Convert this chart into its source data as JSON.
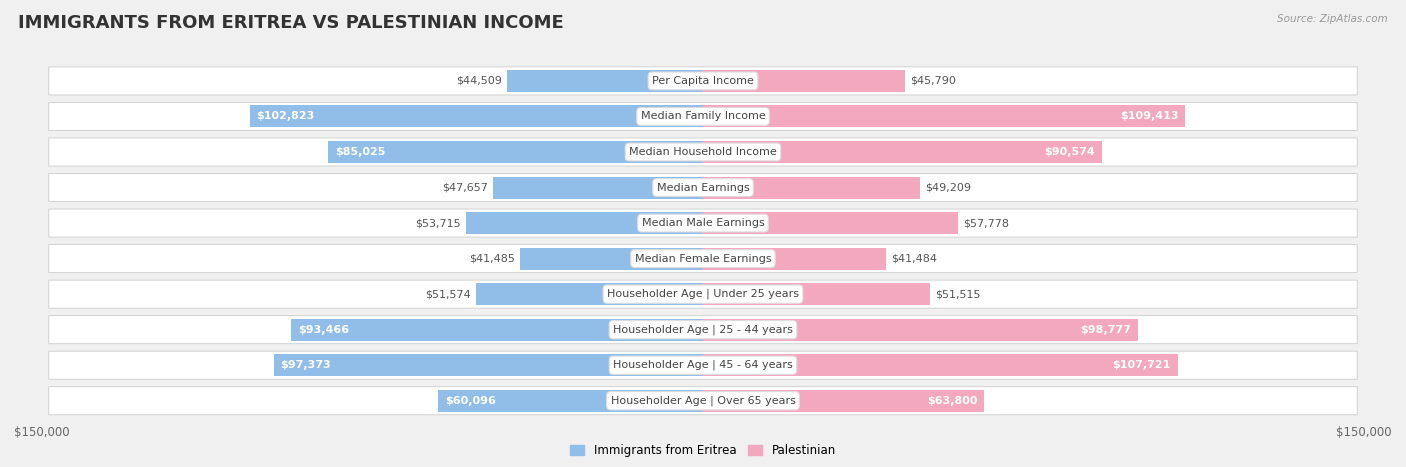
{
  "title": "IMMIGRANTS FROM ERITREA VS PALESTINIAN INCOME",
  "source": "Source: ZipAtlas.com",
  "categories": [
    "Per Capita Income",
    "Median Family Income",
    "Median Household Income",
    "Median Earnings",
    "Median Male Earnings",
    "Median Female Earnings",
    "Householder Age | Under 25 years",
    "Householder Age | 25 - 44 years",
    "Householder Age | 45 - 64 years",
    "Householder Age | Over 65 years"
  ],
  "eritrea_values": [
    44509,
    102823,
    85025,
    47657,
    53715,
    41485,
    51574,
    93466,
    97373,
    60096
  ],
  "palestinian_values": [
    45790,
    109413,
    90574,
    49209,
    57778,
    41484,
    51515,
    98777,
    107721,
    63800
  ],
  "eritrea_labels": [
    "$44,509",
    "$102,823",
    "$85,025",
    "$47,657",
    "$53,715",
    "$41,485",
    "$51,574",
    "$93,466",
    "$97,373",
    "$60,096"
  ],
  "palestinian_labels": [
    "$45,790",
    "$109,413",
    "$90,574",
    "$49,209",
    "$57,778",
    "$41,484",
    "$51,515",
    "$98,777",
    "$107,721",
    "$63,800"
  ],
  "eritrea_color": "#91BEE8",
  "eritrea_dark": "#6096C8",
  "palestinian_color": "#F4A8C0",
  "palestinian_dark": "#E8508A",
  "max_value": 150000,
  "bg_color": "#f0f0f0",
  "row_color": "#fafafa",
  "label_threshold": 60000,
  "title_fontsize": 13,
  "bar_label_fontsize": 8,
  "cat_label_fontsize": 8,
  "axis_fontsize": 8.5
}
